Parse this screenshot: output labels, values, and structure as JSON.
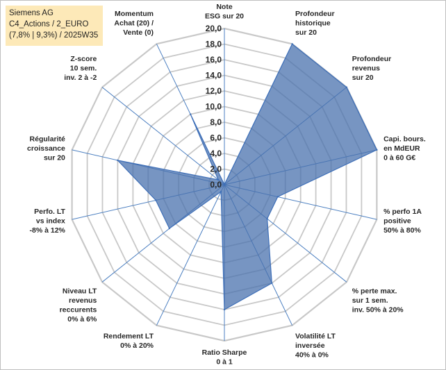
{
  "info": {
    "line1": "Siemens AG",
    "line2": "C4_Actions / 2_EURO",
    "line3": "(7,8% | 9,3%) / 2025W35"
  },
  "chart_data": {
    "type": "radar",
    "rmin": 0,
    "rmax": 20,
    "tick_labels": [
      "0,0",
      "2,0",
      "4,0",
      "6,0",
      "8,0",
      "10,0",
      "12,0",
      "14,0",
      "16,0",
      "18,0",
      "20,0"
    ],
    "axes": [
      {
        "label": [
          "Note",
          "ESG sur 20"
        ],
        "value": 0
      },
      {
        "label": [
          "Profondeur",
          "historique",
          "sur 20"
        ],
        "value": 20
      },
      {
        "label": [
          "Profondeur",
          "revenus",
          "sur 20"
        ],
        "value": 20
      },
      {
        "label": [
          "Capi. bours.",
          "en MdEUR",
          "0 à 60 G€"
        ],
        "value": 20
      },
      {
        "label": [
          "% perfo 1A",
          "positive",
          "50% à 80%"
        ],
        "value": 7
      },
      {
        "label": [
          "% perte max.",
          "sur 1 sem.",
          "inv. 50% à 20%"
        ],
        "value": 7
      },
      {
        "label": [
          "Volatilité LT",
          "inversée",
          "40% à 0%"
        ],
        "value": 14
      },
      {
        "label": [
          "Ratio Sharpe",
          "0 à 1"
        ],
        "value": 16
      },
      {
        "label": [
          "Rendement LT",
          "0% à 20%"
        ],
        "value": 1
      },
      {
        "label": [
          "Niveau LT",
          "revenus",
          "reccurents",
          "0% à 6%"
        ],
        "value": 9
      },
      {
        "label": [
          "Perfo. LT",
          "vs index",
          "-8% à 12%"
        ],
        "value": 9
      },
      {
        "label": [
          "Régularité",
          "croissance",
          "sur 20"
        ],
        "value": 14
      },
      {
        "label": [
          "Z-score",
          "10 sem.",
          "inv. 2 à -2"
        ],
        "value": 1
      },
      {
        "label": [
          "Momentum",
          "Achat (20) /",
          "Vente (0)"
        ],
        "value": 10
      }
    ],
    "colors": {
      "fill": "#4a72ad",
      "line": "#3e6fb8",
      "spoke": "#4a7ec0",
      "grid": "#c8c8c8"
    }
  }
}
